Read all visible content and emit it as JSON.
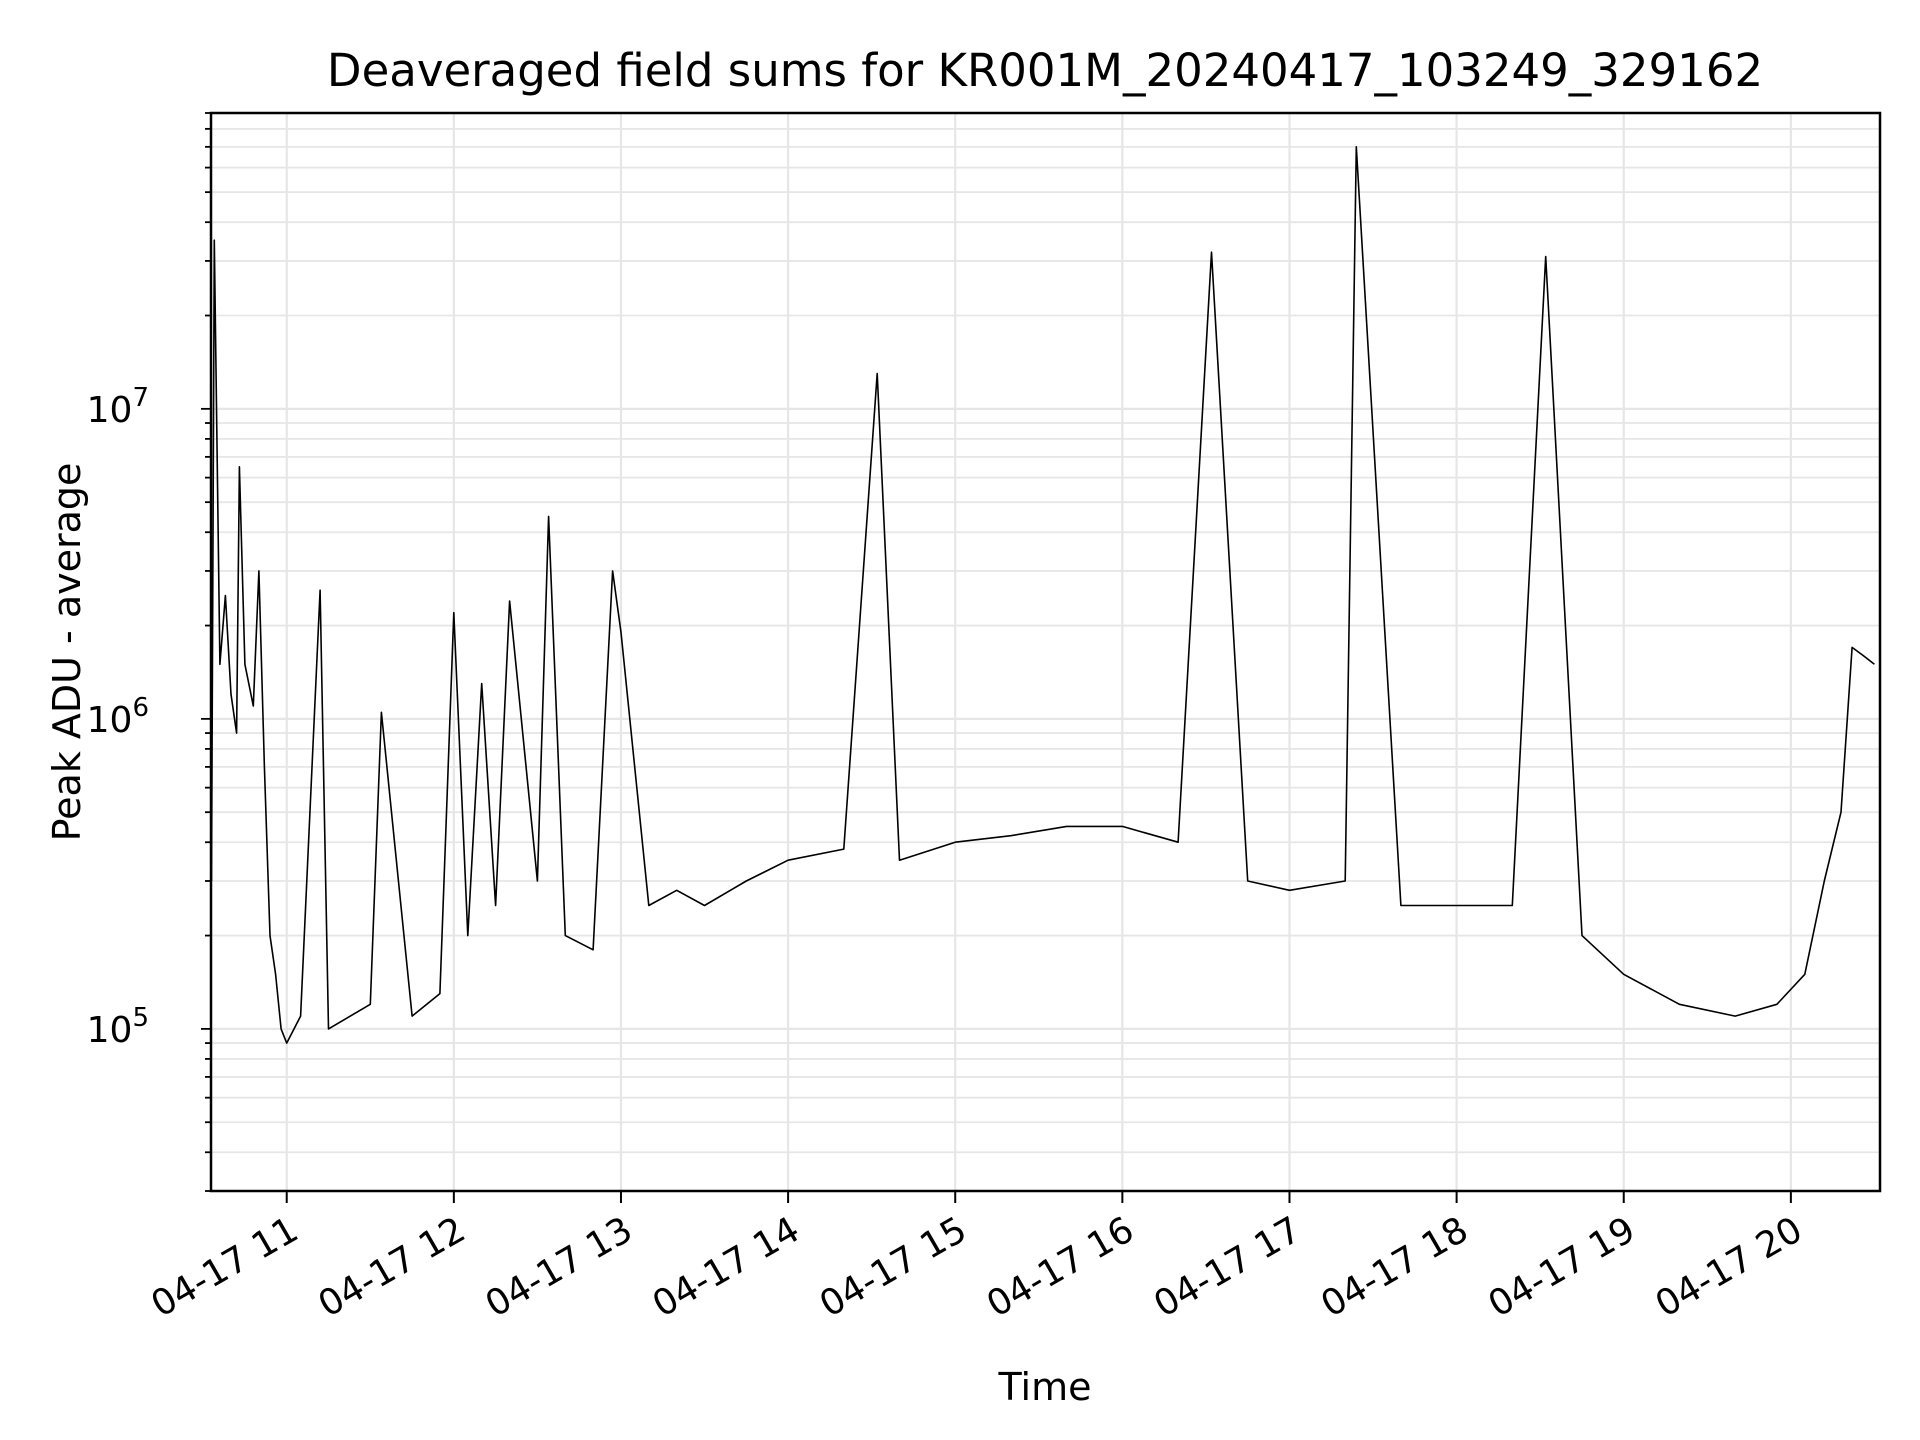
{
  "chart_data": {
    "type": "line",
    "title": "Deaveraged field sums for KR001M_20240417_103249_329162",
    "xlabel": "Time",
    "ylabel": "Peak ADU - average",
    "x_ticks": [
      "04-17 11",
      "04-17 12",
      "04-17 13",
      "04-17 14",
      "04-17 15",
      "04-17 16",
      "04-17 17",
      "04-17 18",
      "04-17 19",
      "04-17 20"
    ],
    "y_ticks": [
      {
        "base": "10",
        "exp": "5",
        "value": 100000
      },
      {
        "base": "10",
        "exp": "6",
        "value": 1000000
      },
      {
        "base": "10",
        "exp": "7",
        "value": 10000000
      }
    ],
    "x_range": [
      "2024-04-17 10:32:49",
      "2024-04-17 20:32"
    ],
    "ylim": [
      30000,
      90000000
    ],
    "yscale": "log",
    "grid": true,
    "line_color": "#000000",
    "series": [
      {
        "points": [
          [
            "10:33",
            300000
          ],
          [
            "10:34",
            35000000
          ],
          [
            "10:36",
            1500000
          ],
          [
            "10:38",
            2500000
          ],
          [
            "10:40",
            1200000
          ],
          [
            "10:42",
            900000
          ],
          [
            "10:43",
            6500000
          ],
          [
            "10:45",
            1500000
          ],
          [
            "10:48",
            1100000
          ],
          [
            "10:50",
            3000000
          ],
          [
            "10:52",
            700000
          ],
          [
            "10:54",
            200000
          ],
          [
            "10:56",
            150000
          ],
          [
            "10:58",
            100000
          ],
          [
            "11:00",
            90000
          ],
          [
            "11:05",
            110000
          ],
          [
            "11:12",
            2600000
          ],
          [
            "11:15",
            100000
          ],
          [
            "11:30",
            120000
          ],
          [
            "11:34",
            1050000
          ],
          [
            "11:45",
            110000
          ],
          [
            "11:55",
            130000
          ],
          [
            "12:00",
            2200000
          ],
          [
            "12:05",
            200000
          ],
          [
            "12:10",
            1300000
          ],
          [
            "12:15",
            250000
          ],
          [
            "12:20",
            2400000
          ],
          [
            "12:30",
            300000
          ],
          [
            "12:34",
            4500000
          ],
          [
            "12:40",
            200000
          ],
          [
            "12:50",
            180000
          ],
          [
            "12:57",
            3000000
          ],
          [
            "13:00",
            1900000
          ],
          [
            "13:10",
            250000
          ],
          [
            "13:20",
            280000
          ],
          [
            "13:30",
            250000
          ],
          [
            "13:45",
            300000
          ],
          [
            "14:00",
            350000
          ],
          [
            "14:20",
            380000
          ],
          [
            "14:32",
            13000000
          ],
          [
            "14:40",
            350000
          ],
          [
            "15:00",
            400000
          ],
          [
            "15:20",
            420000
          ],
          [
            "15:40",
            450000
          ],
          [
            "16:00",
            450000
          ],
          [
            "16:20",
            400000
          ],
          [
            "16:32",
            32000000
          ],
          [
            "16:45",
            300000
          ],
          [
            "17:00",
            280000
          ],
          [
            "17:20",
            300000
          ],
          [
            "17:24",
            70000000
          ],
          [
            "17:40",
            250000
          ],
          [
            "18:00",
            250000
          ],
          [
            "18:20",
            250000
          ],
          [
            "18:32",
            31000000
          ],
          [
            "18:45",
            200000
          ],
          [
            "19:00",
            150000
          ],
          [
            "19:20",
            120000
          ],
          [
            "19:40",
            110000
          ],
          [
            "19:55",
            120000
          ],
          [
            "20:05",
            150000
          ],
          [
            "20:12",
            300000
          ],
          [
            "20:18",
            500000
          ],
          [
            "20:22",
            1700000
          ],
          [
            "20:26",
            1600000
          ],
          [
            "20:30",
            1500000
          ]
        ]
      }
    ]
  }
}
